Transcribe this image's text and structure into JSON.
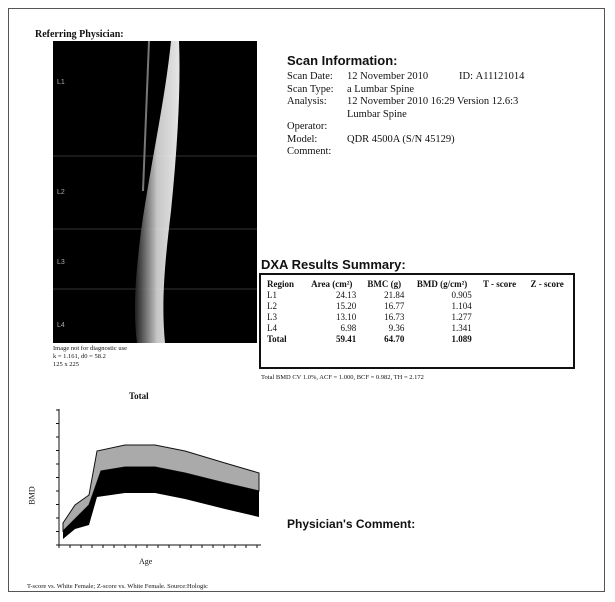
{
  "header": {
    "referring_physician": "Referring Physician:"
  },
  "image": {
    "vertebrae": [
      "L1",
      "L2",
      "L3",
      "L4"
    ],
    "note": [
      "Image not for diagnostic use",
      "k = 1.161, d0 = 58.2",
      "125 x 225"
    ]
  },
  "scan_info": {
    "title": "Scan Information:",
    "scan_date_label": "Scan Date:",
    "scan_date": "12 November 2010",
    "id_label": "ID:",
    "id": "A11121014",
    "scan_type_label": "Scan Type:",
    "scan_type": "a Lumbar Spine",
    "analysis_label": "Analysis:",
    "analysis": [
      "12 November 2010 16:29 Version 12.6:3",
      "Lumbar Spine"
    ],
    "operator_label": "Operator:",
    "model_label": "Model:",
    "model": "QDR 4500A (S/N 45129)",
    "comment_label": "Comment:"
  },
  "results": {
    "title": "DXA Results Summary:",
    "columns": [
      "Region",
      "Area (cm²)",
      "BMC (g)",
      "BMD (g/cm²)",
      "T - score",
      "Z - score"
    ],
    "rows": [
      [
        "L1",
        "24.13",
        "21.84",
        "0.905"
      ],
      [
        "L2",
        "15.20",
        "16.77",
        "1.104"
      ],
      [
        "L3",
        "13.10",
        "16.73",
        "1.277"
      ],
      [
        "L4",
        "6.98",
        "9.36",
        "1.341"
      ],
      [
        "Total",
        "59.41",
        "64.70",
        "1.089"
      ]
    ],
    "footnote": "Total BMD CV 1.0%, ACF = 1.000, BCF = 0.982, TH = 2.172"
  },
  "reference_chart": {
    "title": "Total",
    "y_label": "BMD",
    "x_label": "Age"
  },
  "physician_comment": "Physician's Comment:",
  "source_note": "T-score vs. White Female; Z-score vs. White Female. Source:Hologic"
}
